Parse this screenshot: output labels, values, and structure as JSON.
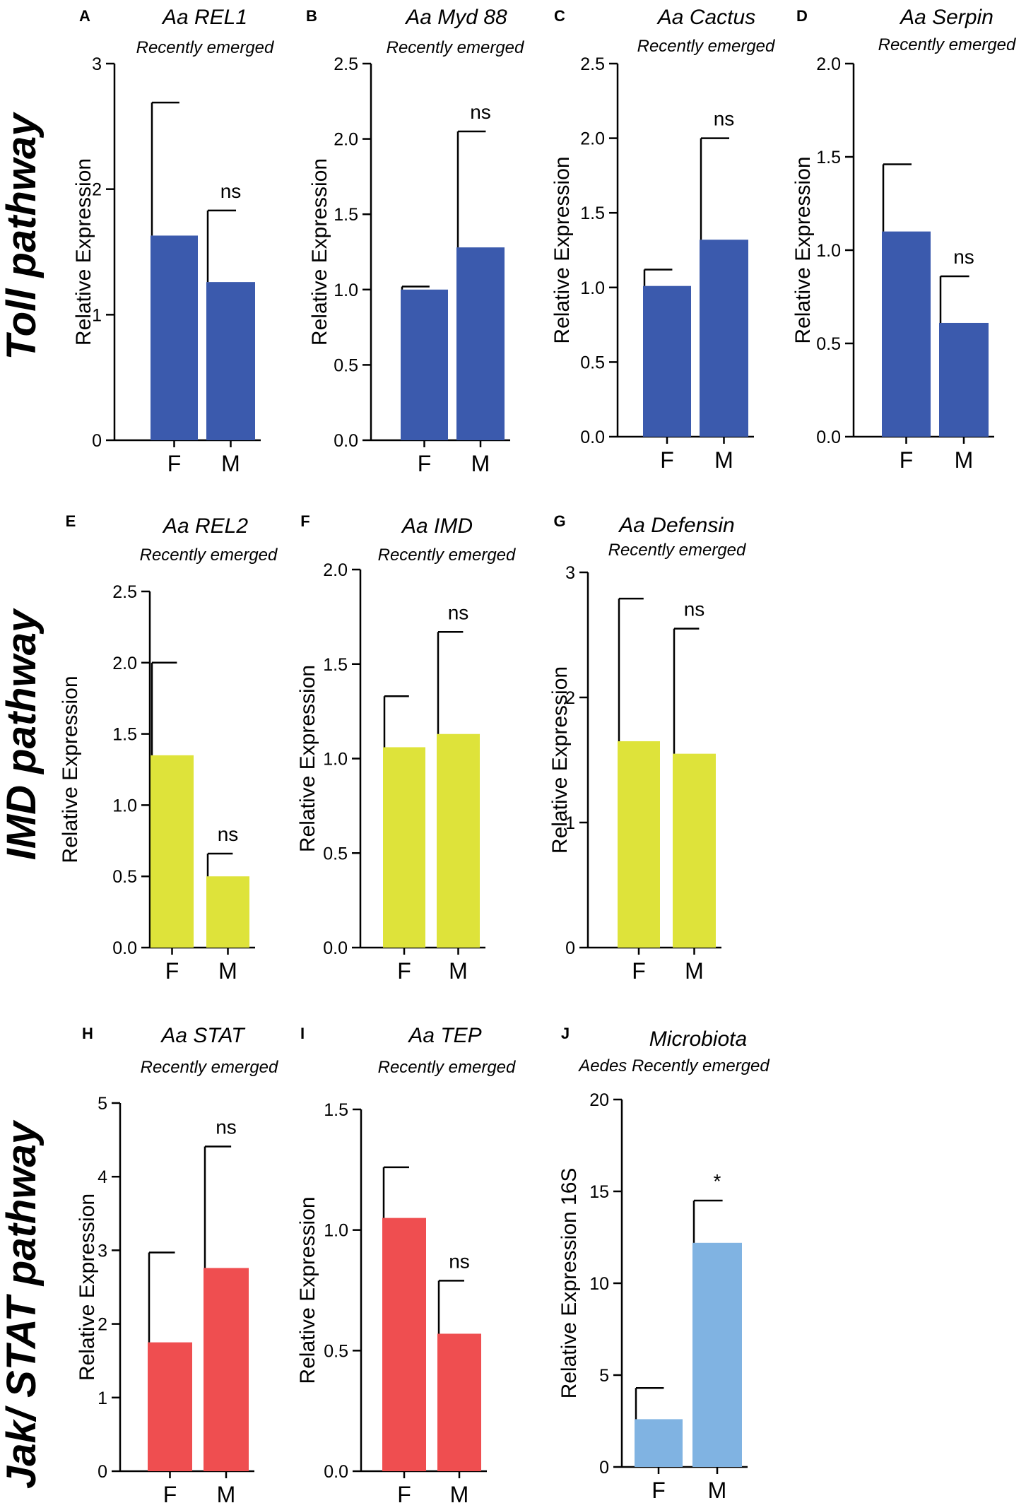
{
  "figure": {
    "row_labels": [
      "Toll pathway",
      "IMD pathway",
      "Jak/ STAT pathway"
    ],
    "colors": {
      "toll": "#3b5aad",
      "imd": "#dee33a",
      "jakstat": "#ef4e50",
      "microbiota": "#80b3e2"
    }
  },
  "chart_data": [
    {
      "id": "A",
      "type": "bar",
      "title": "Aa REL1",
      "subtitle": "Recently emerged",
      "ylabel": "Relative Expression",
      "categories": [
        "F",
        "M"
      ],
      "values": [
        1.63,
        1.26
      ],
      "errors": [
        1.06,
        0.57
      ],
      "ylim": [
        0,
        3
      ],
      "yticks": [
        "0",
        "1",
        "2",
        "3"
      ],
      "annotations": [
        "",
        "ns"
      ]
    },
    {
      "id": "B",
      "type": "bar",
      "title": "Aa Myd 88",
      "subtitle": "Recently emerged",
      "ylabel": "Relative Expression",
      "categories": [
        "F",
        "M"
      ],
      "values": [
        1.0,
        1.28
      ],
      "errors": [
        0.02,
        0.77
      ],
      "ylim": [
        0,
        2.5
      ],
      "yticks": [
        "0.0",
        "0.5",
        "1.0",
        "1.5",
        "2.0",
        "2.5"
      ],
      "annotations": [
        "",
        "ns"
      ]
    },
    {
      "id": "C",
      "type": "bar",
      "title": "Aa Cactus",
      "subtitle": "Recently emerged",
      "ylabel": "Relative Expression",
      "categories": [
        "F",
        "M"
      ],
      "values": [
        1.01,
        1.32
      ],
      "errors": [
        0.11,
        0.68
      ],
      "ylim": [
        0,
        2.5
      ],
      "yticks": [
        "0.0",
        "0.5",
        "1.0",
        "1.5",
        "2.0",
        "2.5"
      ],
      "annotations": [
        "",
        "ns"
      ]
    },
    {
      "id": "D",
      "type": "bar",
      "title": "Aa Serpin",
      "subtitle": "Recently emerged",
      "ylabel": "Relative Expression",
      "categories": [
        "F",
        "M"
      ],
      "values": [
        1.1,
        0.61
      ],
      "errors": [
        0.36,
        0.25
      ],
      "ylim": [
        0,
        2.0
      ],
      "yticks": [
        "0.0",
        "0.5",
        "1.0",
        "1.5",
        "2.0"
      ],
      "annotations": [
        "",
        "ns"
      ]
    },
    {
      "id": "E",
      "type": "bar",
      "title": "Aa REL2",
      "subtitle": "Recently emerged",
      "ylabel": "Relative Expression",
      "categories": [
        "F",
        "M"
      ],
      "values": [
        1.35,
        0.5
      ],
      "errors": [
        0.65,
        0.16
      ],
      "ylim": [
        0,
        2.5
      ],
      "yticks": [
        "0.0",
        "0.5",
        "1.0",
        "1.5",
        "2.0",
        "2.5"
      ],
      "annotations": [
        "",
        "ns"
      ]
    },
    {
      "id": "F",
      "type": "bar",
      "title": "Aa IMD",
      "subtitle": "Recently emerged",
      "ylabel": "Relative Expression",
      "categories": [
        "F",
        "M"
      ],
      "values": [
        1.06,
        1.13
      ],
      "errors": [
        0.27,
        0.54
      ],
      "ylim": [
        0,
        2.0
      ],
      "yticks": [
        "0.0",
        "0.5",
        "1.0",
        "1.5",
        "2.0"
      ],
      "annotations": [
        "",
        "ns"
      ]
    },
    {
      "id": "G",
      "type": "bar",
      "title": "Aa Defensin",
      "subtitle": "Recently emerged",
      "ylabel": "Relative Expression",
      "categories": [
        "F",
        "M"
      ],
      "values": [
        1.65,
        1.55
      ],
      "errors": [
        1.14,
        1.0
      ],
      "ylim": [
        0,
        3
      ],
      "yticks": [
        "0",
        "1",
        "2",
        "3"
      ],
      "annotations": [
        "",
        "ns"
      ]
    },
    {
      "id": "H",
      "type": "bar",
      "title": "Aa STAT",
      "subtitle": "Recently emerged",
      "ylabel": "Relative Expression",
      "categories": [
        "F",
        "M"
      ],
      "values": [
        1.75,
        2.76
      ],
      "errors": [
        1.22,
        1.65
      ],
      "ylim": [
        0,
        5
      ],
      "yticks": [
        "0",
        "1",
        "2",
        "3",
        "4",
        "5"
      ],
      "annotations": [
        "",
        "ns"
      ]
    },
    {
      "id": "I",
      "type": "bar",
      "title": "Aa TEP",
      "subtitle": "Recently emerged",
      "ylabel": "Relative Expression",
      "categories": [
        "F",
        "M"
      ],
      "values": [
        1.05,
        0.57
      ],
      "errors": [
        0.21,
        0.22
      ],
      "ylim": [
        0,
        1.5
      ],
      "yticks": [
        "0.0",
        "0.5",
        "1.0",
        "1.5"
      ],
      "annotations": [
        "",
        "ns"
      ]
    },
    {
      "id": "J",
      "type": "bar",
      "title": "Microbiota",
      "subtitle": "Aedes Recently emerged",
      "ylabel": "Relative Expression 16S",
      "categories": [
        "F",
        "M"
      ],
      "values": [
        2.6,
        12.2
      ],
      "errors": [
        1.7,
        2.3
      ],
      "ylim": [
        0,
        20
      ],
      "yticks": [
        "0",
        "5",
        "10",
        "15",
        "20"
      ],
      "annotations": [
        "",
        "*"
      ]
    }
  ]
}
